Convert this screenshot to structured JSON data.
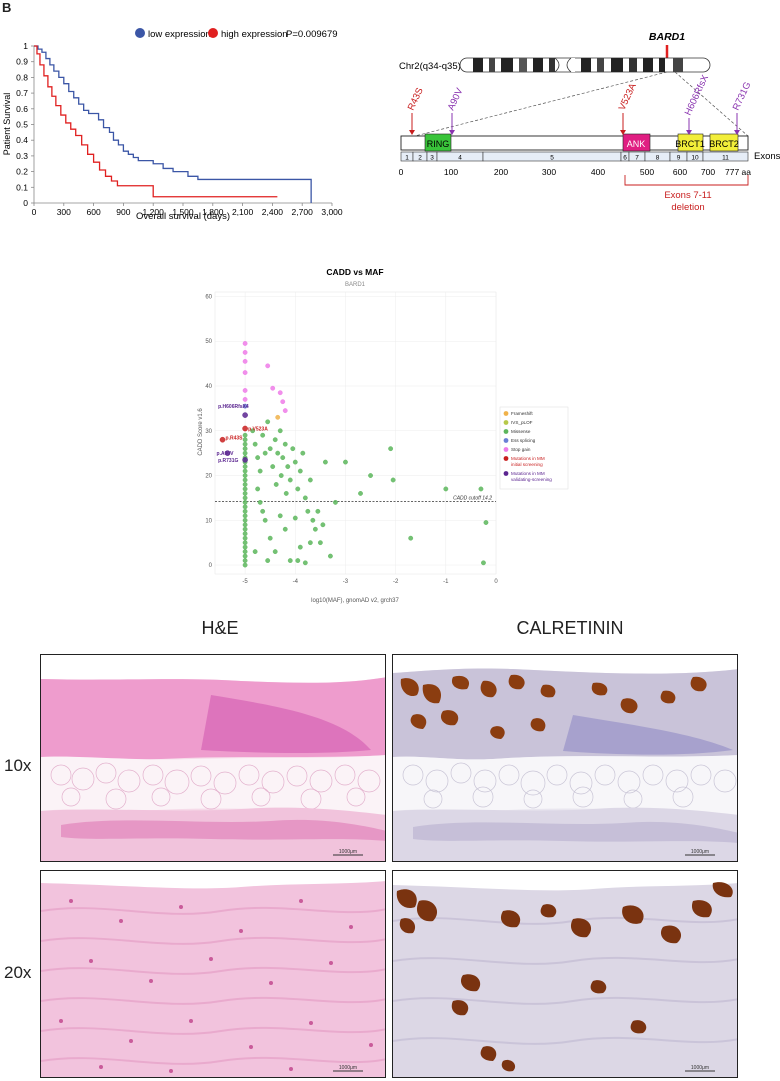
{
  "panel_letter": "B",
  "chart_data": [
    {
      "type": "line",
      "legend": [
        "low expression",
        "high expression"
      ],
      "pvalue": "P=0.009679",
      "xlabel": "Overall survival (days)",
      "ylabel": "Patient Survival",
      "xticks": [
        "0",
        "300",
        "600",
        "900",
        "1,200",
        "1,500",
        "1,800",
        "2,100",
        "2,400",
        "2,700",
        "3,000"
      ],
      "yticks": [
        "0",
        "0.1",
        "0.2",
        "0.3",
        "0.4",
        "0.5",
        "0.6",
        "0.7",
        "0.8",
        "0.9",
        "1"
      ],
      "xlim": [
        0,
        3000
      ],
      "ylim": [
        0,
        1
      ],
      "legend_position": "top",
      "series": [
        {
          "name": "low expression",
          "color": "#3b56a6",
          "x": [
            0,
            40,
            80,
            120,
            160,
            200,
            250,
            300,
            350,
            400,
            450,
            500,
            550,
            600,
            650,
            700,
            760,
            800,
            850,
            900,
            950,
            1000,
            1050,
            1100,
            1200,
            1300,
            1400,
            1550,
            1650,
            1750,
            2000,
            2500,
            2780,
            2790
          ],
          "y": [
            1,
            0.98,
            0.96,
            0.92,
            0.88,
            0.84,
            0.8,
            0.76,
            0.71,
            0.67,
            0.63,
            0.59,
            0.57,
            0.57,
            0.53,
            0.48,
            0.45,
            0.4,
            0.37,
            0.33,
            0.31,
            0.29,
            0.27,
            0.27,
            0.25,
            0.22,
            0.2,
            0.17,
            0.15,
            0.15,
            0.15,
            0.15,
            0.15,
            0
          ]
        },
        {
          "name": "high expression",
          "color": "#e02020",
          "x": [
            0,
            30,
            60,
            100,
            140,
            180,
            220,
            270,
            320,
            370,
            420,
            480,
            540,
            600,
            660,
            720,
            780,
            840,
            900,
            1200,
            1500,
            2450
          ],
          "y": [
            1,
            0.95,
            0.88,
            0.81,
            0.74,
            0.68,
            0.62,
            0.56,
            0.51,
            0.47,
            0.43,
            0.37,
            0.31,
            0.26,
            0.21,
            0.17,
            0.14,
            0.11,
            0.11,
            0.04,
            0.04,
            0.04
          ]
        }
      ]
    },
    {
      "type": "scatter",
      "title": "CADD vs MAF",
      "subtitle": "BARD1",
      "xlabel": "log10(MAF), gnomAD v2, grch37",
      "ylabel": "CADD Score v1.6",
      "xticks": [
        "-5",
        "-4",
        "-3",
        "-2",
        "-1",
        "0"
      ],
      "yticks": [
        "0",
        "10",
        "20",
        "30",
        "40",
        "50",
        "60"
      ],
      "xlim": [
        -5.6,
        0
      ],
      "ylim": [
        -2,
        61
      ],
      "cutoff_value": 14.2,
      "cutoff_label": "CADD cutoff 14.2",
      "legend_position": "right",
      "legend": [
        {
          "label": "Frameshift",
          "color": "#f0b24a",
          "text_color": "#333"
        },
        {
          "label": "IVS_pLOF",
          "color": "#b7c94a",
          "text_color": "#333"
        },
        {
          "label": "Missense",
          "color": "#5cb65c",
          "text_color": "#333"
        },
        {
          "label": "Ess splicing",
          "color": "#6a7fd6",
          "text_color": "#333"
        },
        {
          "label": "Stop gain",
          "color": "#ee7be8",
          "text_color": "#333"
        },
        {
          "label": "Mutations in MM initial screening",
          "color": "#c81e1e",
          "text_color": "#c81e1e"
        },
        {
          "label": "Mutations in MM validating-screening",
          "color": "#5b2590",
          "text_color": "#5b2590"
        }
      ],
      "annotations": [
        {
          "label": "p.H606RfsX4",
          "x": -5.0,
          "y": 35.5,
          "color": "#5b2590"
        },
        {
          "label": "p.V523A",
          "x": -5.0,
          "y": 30.5,
          "color": "#c81e1e"
        },
        {
          "label": "p.R43S",
          "x": -5.45,
          "y": 28.5,
          "color": "#c81e1e"
        },
        {
          "label": "p.A90V",
          "x": -5.35,
          "y": 25.0,
          "color": "#5b2590"
        },
        {
          "label": "p.R731G",
          "x": -5.0,
          "y": 23.5,
          "color": "#5b2590"
        }
      ],
      "points": {
        "missense_col5": [
          0,
          1,
          2,
          3,
          4,
          5,
          6,
          7,
          8,
          9,
          10,
          11,
          12,
          13,
          14,
          15,
          16,
          17,
          18,
          19,
          20,
          21,
          22,
          23,
          24,
          25,
          26,
          27,
          28,
          29
        ],
        "stop_gain": [
          [
            -5.0,
            49.5
          ],
          [
            -5.0,
            47.5
          ],
          [
            -5.0,
            45.5
          ],
          [
            -5.0,
            43.0
          ],
          [
            -4.55,
            44.5
          ],
          [
            -4.45,
            39.5
          ],
          [
            -4.3,
            38.5
          ],
          [
            -4.25,
            36.5
          ],
          [
            -5.0,
            39.0
          ],
          [
            -5.0,
            37.0
          ],
          [
            -4.2,
            34.5
          ]
        ],
        "frameshift": [
          [
            -4.35,
            33.0
          ]
        ],
        "ess_splicing": [
          [
            -5.0,
            35.5
          ]
        ],
        "missense_scatter": [
          [
            -4.85,
            30
          ],
          [
            -4.8,
            27
          ],
          [
            -4.75,
            24
          ],
          [
            -4.7,
            21
          ],
          [
            -4.65,
            29
          ],
          [
            -4.6,
            25
          ],
          [
            -4.55,
            32
          ],
          [
            -4.5,
            26
          ],
          [
            -4.45,
            22
          ],
          [
            -4.4,
            28
          ],
          [
            -4.38,
            18
          ],
          [
            -4.35,
            25
          ],
          [
            -4.3,
            30
          ],
          [
            -4.28,
            20
          ],
          [
            -4.25,
            24
          ],
          [
            -4.2,
            27
          ],
          [
            -4.18,
            16
          ],
          [
            -4.15,
            22
          ],
          [
            -4.1,
            19
          ],
          [
            -4.05,
            26
          ],
          [
            -4.0,
            23
          ],
          [
            -3.95,
            17
          ],
          [
            -3.9,
            21
          ],
          [
            -3.85,
            25
          ],
          [
            -3.8,
            15
          ],
          [
            -3.75,
            12
          ],
          [
            -3.7,
            19
          ],
          [
            -3.65,
            10
          ],
          [
            -3.6,
            8
          ],
          [
            -3.55,
            12
          ],
          [
            -3.5,
            5
          ],
          [
            -3.45,
            9
          ],
          [
            -3.4,
            23
          ],
          [
            -3.3,
            2
          ],
          [
            -3.2,
            14
          ],
          [
            -4.6,
            10
          ],
          [
            -4.5,
            6
          ],
          [
            -4.4,
            3
          ],
          [
            -4.2,
            8
          ],
          [
            -4.1,
            1
          ],
          [
            -3.9,
            4
          ],
          [
            -3.8,
            0.5
          ],
          [
            -3.7,
            5
          ],
          [
            -3.0,
            23
          ],
          [
            -2.7,
            16
          ],
          [
            -2.5,
            20
          ],
          [
            -2.1,
            26
          ],
          [
            -2.05,
            19
          ],
          [
            -1.7,
            6
          ],
          [
            -1.0,
            17
          ],
          [
            -0.3,
            17
          ],
          [
            -0.25,
            0.5
          ],
          [
            -0.2,
            9.5
          ],
          [
            -4.7,
            14
          ],
          [
            -4.3,
            11
          ],
          [
            -4.0,
            10.5
          ],
          [
            -3.95,
            1
          ],
          [
            -4.55,
            1
          ],
          [
            -4.8,
            3
          ],
          [
            -4.75,
            17
          ],
          [
            -4.65,
            12
          ]
        ],
        "mutations_initial": [
          [
            -5.0,
            30.5
          ],
          [
            -5.45,
            28.0
          ]
        ],
        "mutations_validating": [
          [
            -5.35,
            25.0
          ],
          [
            -5.0,
            33.5
          ],
          [
            -5.0,
            23.5
          ]
        ]
      }
    }
  ],
  "gene_diagram": {
    "gene": "BARD1",
    "chromosome": "Chr2(q34-q35)",
    "domains": [
      {
        "label": "RING",
        "color": "#39c43a"
      },
      {
        "label": "ANK",
        "color": "#e01e82"
      },
      {
        "label": "BRCT1",
        "color": "#f2ee3a"
      },
      {
        "label": "BRCT2",
        "color": "#f2ee3a"
      }
    ],
    "mutations": [
      {
        "label": "R43S",
        "color": "#c81e1e"
      },
      {
        "label": "A90V",
        "color": "#8a34b0"
      },
      {
        "label": "V523A",
        "color": "#c81e1e"
      },
      {
        "label": "H606RfsX",
        "color": "#8a34b0"
      },
      {
        "label": "R731G",
        "color": "#8a34b0"
      }
    ],
    "exons": [
      "1",
      "2",
      "3",
      "4",
      "5",
      "6",
      "7",
      "8",
      "9",
      "10",
      "11"
    ],
    "exons_label": "Exons",
    "aa_ticks": [
      "0",
      "100",
      "200",
      "300",
      "400",
      "500",
      "600",
      "700",
      "777 aa"
    ],
    "deletion_label_1": "Exons 7-11",
    "deletion_label_2": "deletion"
  },
  "histology": {
    "col_he": "H&E",
    "col_cal": "CALRETININ",
    "row_10x": "10x",
    "row_20x": "20x",
    "scale_bar": "1000μm"
  }
}
